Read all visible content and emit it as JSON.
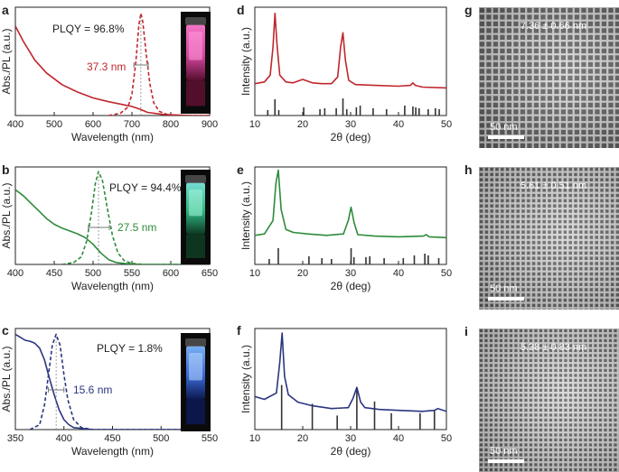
{
  "chart_data": [
    {
      "type": "line",
      "panel": "a",
      "xlabel": "Wavelength (nm)",
      "ylabel": "Abs./PL (a.u.)",
      "xlim": [
        400,
        900
      ],
      "xticks": [
        400,
        500,
        600,
        700,
        800,
        900
      ],
      "color": "#c0262c",
      "plqy": "PLQY = 96.8%",
      "fwhm": "37.3 nm",
      "fwhm_range": [
        705,
        742
      ],
      "peak": 723,
      "series": [
        {
          "style": "solid",
          "x": [
            400,
            420,
            450,
            480,
            520,
            560,
            600,
            640,
            680,
            700,
            720,
            740,
            780,
            850,
            900
          ],
          "y": [
            0.84,
            0.7,
            0.52,
            0.4,
            0.29,
            0.22,
            0.165,
            0.13,
            0.1,
            0.085,
            0.06,
            0.03,
            0.01,
            0.0,
            0.0
          ]
        },
        {
          "style": "dashed",
          "x": [
            640,
            670,
            690,
            700,
            710,
            718,
            723,
            728,
            736,
            746,
            756,
            770,
            790,
            820,
            900
          ],
          "y": [
            0.0,
            0.02,
            0.08,
            0.2,
            0.5,
            0.85,
            0.96,
            0.88,
            0.6,
            0.3,
            0.12,
            0.04,
            0.01,
            0.0,
            0.0
          ]
        }
      ]
    },
    {
      "type": "line",
      "panel": "b",
      "xlabel": "Wavelength (nm)",
      "ylabel": "Abs./PL (a.u.)",
      "xlim": [
        400,
        650
      ],
      "xticks": [
        400,
        450,
        500,
        550,
        600,
        650
      ],
      "color": "#2e8b3a",
      "plqy": "PLQY = 94.4%",
      "fwhm": "27.5 nm",
      "fwhm_range": [
        494,
        521
      ],
      "peak": 507,
      "series": [
        {
          "style": "solid",
          "x": [
            400,
            410,
            420,
            430,
            440,
            450,
            460,
            470,
            480,
            490,
            500,
            510,
            520,
            530,
            540,
            560,
            600,
            650
          ],
          "y": [
            0.78,
            0.72,
            0.64,
            0.56,
            0.48,
            0.42,
            0.38,
            0.35,
            0.32,
            0.28,
            0.21,
            0.12,
            0.05,
            0.02,
            0.01,
            0.0,
            0.0,
            0.0
          ]
        },
        {
          "style": "dashed",
          "x": [
            460,
            475,
            485,
            492,
            498,
            503,
            507,
            512,
            518,
            525,
            532,
            540,
            550,
            565,
            650
          ],
          "y": [
            0.0,
            0.02,
            0.08,
            0.25,
            0.55,
            0.85,
            0.97,
            0.88,
            0.6,
            0.3,
            0.12,
            0.04,
            0.01,
            0.0,
            0.0
          ]
        }
      ]
    },
    {
      "type": "line",
      "panel": "c",
      "xlabel": "Wavelength (nm)",
      "ylabel": "Abs./PL (a.u.)",
      "xlim": [
        350,
        550
      ],
      "xticks": [
        350,
        400,
        450,
        500,
        550
      ],
      "color": "#2b3580",
      "plqy": "PLQY = 1.8%",
      "fwhm": "15.6 nm",
      "fwhm_range": [
        384,
        400
      ],
      "peak": 392,
      "series": [
        {
          "style": "solid",
          "x": [
            350,
            355,
            360,
            365,
            370,
            375,
            380,
            385,
            390,
            395,
            400,
            405,
            410,
            420,
            430,
            450,
            550
          ],
          "y": [
            0.96,
            0.93,
            0.9,
            0.89,
            0.87,
            0.82,
            0.7,
            0.52,
            0.35,
            0.2,
            0.1,
            0.05,
            0.02,
            0.01,
            0.0,
            0.0,
            0.0
          ]
        },
        {
          "style": "dashed",
          "x": [
            365,
            375,
            380,
            384,
            388,
            392,
            396,
            400,
            404,
            410,
            418,
            430,
            550
          ],
          "y": [
            0.0,
            0.05,
            0.25,
            0.55,
            0.85,
            0.96,
            0.85,
            0.55,
            0.3,
            0.1,
            0.02,
            0.0,
            0.0
          ]
        }
      ]
    },
    {
      "type": "line",
      "panel": "d",
      "xlabel": "2θ (deg)",
      "ylabel": "Intensity (a.u.)",
      "xlim": [
        10,
        50
      ],
      "xticks": [
        10,
        20,
        30,
        40,
        50
      ],
      "color": "#c0262c",
      "series": [
        {
          "style": "solid",
          "x": [
            10,
            12,
            13.2,
            13.8,
            14.2,
            14.6,
            15.2,
            16.5,
            18,
            20,
            22,
            24,
            26,
            27.3,
            27.9,
            28.4,
            28.9,
            29.6,
            31,
            35,
            40,
            42.5,
            43,
            43.5,
            45,
            50
          ],
          "y": [
            0.12,
            0.14,
            0.22,
            0.55,
            0.95,
            0.6,
            0.22,
            0.14,
            0.13,
            0.17,
            0.13,
            0.12,
            0.12,
            0.2,
            0.55,
            0.72,
            0.4,
            0.16,
            0.11,
            0.1,
            0.09,
            0.1,
            0.13,
            0.1,
            0.08,
            0.07
          ]
        }
      ],
      "reference_peaks": [
        {
          "x": 12.7,
          "h": 0.3
        },
        {
          "x": 14.2,
          "h": 0.9
        },
        {
          "x": 15.0,
          "h": 0.3
        },
        {
          "x": 20.2,
          "h": 0.45
        },
        {
          "x": 23.6,
          "h": 0.35
        },
        {
          "x": 24.6,
          "h": 0.4
        },
        {
          "x": 27.0,
          "h": 0.4
        },
        {
          "x": 28.4,
          "h": 0.95
        },
        {
          "x": 29.2,
          "h": 0.35
        },
        {
          "x": 31.2,
          "h": 0.45
        },
        {
          "x": 32.0,
          "h": 0.55
        },
        {
          "x": 34.7,
          "h": 0.4
        },
        {
          "x": 37.5,
          "h": 0.35
        },
        {
          "x": 41.3,
          "h": 0.55
        },
        {
          "x": 43.0,
          "h": 0.5
        },
        {
          "x": 43.6,
          "h": 0.45
        },
        {
          "x": 44.3,
          "h": 0.4
        },
        {
          "x": 46.2,
          "h": 0.35
        },
        {
          "x": 47.7,
          "h": 0.4
        },
        {
          "x": 48.5,
          "h": 0.35
        }
      ]
    },
    {
      "type": "line",
      "panel": "e",
      "xlabel": "2θ (deg)",
      "ylabel": "Intensity (a.u.)",
      "xlim": [
        10,
        50
      ],
      "xticks": [
        10,
        20,
        30,
        40,
        50
      ],
      "color": "#2e8b3a",
      "series": [
        {
          "style": "solid",
          "x": [
            10,
            12,
            13.8,
            14.4,
            14.9,
            15.5,
            16.5,
            18,
            21,
            25,
            28.5,
            29.5,
            30.1,
            30.7,
            31.5,
            35,
            40,
            45.2,
            45.8,
            46.4,
            50
          ],
          "y": [
            0.1,
            0.12,
            0.3,
            0.8,
            0.98,
            0.45,
            0.18,
            0.14,
            0.12,
            0.1,
            0.12,
            0.3,
            0.48,
            0.28,
            0.11,
            0.09,
            0.08,
            0.09,
            0.11,
            0.08,
            0.07
          ]
        }
      ],
      "reference_peaks": [
        {
          "x": 13.0,
          "h": 0.3
        },
        {
          "x": 14.9,
          "h": 0.9
        },
        {
          "x": 21.3,
          "h": 0.45
        },
        {
          "x": 24.0,
          "h": 0.35
        },
        {
          "x": 26.0,
          "h": 0.3
        },
        {
          "x": 30.1,
          "h": 0.9
        },
        {
          "x": 30.7,
          "h": 0.4
        },
        {
          "x": 33.2,
          "h": 0.4
        },
        {
          "x": 34.0,
          "h": 0.45
        },
        {
          "x": 37.0,
          "h": 0.35
        },
        {
          "x": 41.0,
          "h": 0.35
        },
        {
          "x": 43.3,
          "h": 0.5
        },
        {
          "x": 45.5,
          "h": 0.6
        },
        {
          "x": 46.2,
          "h": 0.5
        },
        {
          "x": 48.4,
          "h": 0.35
        }
      ]
    },
    {
      "type": "line",
      "panel": "f",
      "xlabel": "2θ (deg)",
      "ylabel": "Intensity (a.u.)",
      "xlim": [
        10,
        50
      ],
      "xticks": [
        10,
        20,
        30,
        40,
        50
      ],
      "color": "#2b3580",
      "series": [
        {
          "style": "solid",
          "x": [
            10,
            12,
            14.5,
            15.2,
            15.7,
            16.2,
            17,
            19,
            22,
            26,
            29.5,
            30.5,
            31.3,
            32.1,
            33,
            36,
            40,
            45,
            47.5,
            48.2,
            50
          ],
          "y": [
            0.28,
            0.25,
            0.32,
            0.65,
            0.97,
            0.5,
            0.3,
            0.22,
            0.18,
            0.15,
            0.16,
            0.26,
            0.38,
            0.22,
            0.16,
            0.14,
            0.13,
            0.12,
            0.13,
            0.15,
            0.12
          ]
        }
      ],
      "reference_peaks": [
        {
          "x": 15.6,
          "h": 0.95
        },
        {
          "x": 22.0,
          "h": 0.55
        },
        {
          "x": 27.2,
          "h": 0.3
        },
        {
          "x": 31.3,
          "h": 0.85
        },
        {
          "x": 35.0,
          "h": 0.6
        },
        {
          "x": 38.5,
          "h": 0.35
        },
        {
          "x": 44.5,
          "h": 0.35
        },
        {
          "x": 47.5,
          "h": 0.4
        }
      ]
    }
  ],
  "tem_panels": [
    {
      "panel": "g",
      "size": "7.36 ± 0.66 nm",
      "scale": "50 nm"
    },
    {
      "panel": "h",
      "size": "5.61 ± 0.51 nm",
      "scale": "50 nm"
    },
    {
      "panel": "i",
      "size": "5.38 ± 0.83 nm",
      "scale": "50 nm"
    }
  ],
  "vial_colors": {
    "a": {
      "top": "#ff7ad0",
      "mid": "#e04aa8",
      "bottom": "#5a0f30",
      "glow": "#ff9ad8"
    },
    "b": {
      "top": "#7de8e0",
      "mid": "#2fbf8a",
      "bottom": "#0e3a22",
      "glow": "#aaf5d8"
    },
    "c": {
      "top": "#7fb8ff",
      "mid": "#3d6de0",
      "bottom": "#0c1850",
      "glow": "#b8d8ff"
    }
  }
}
